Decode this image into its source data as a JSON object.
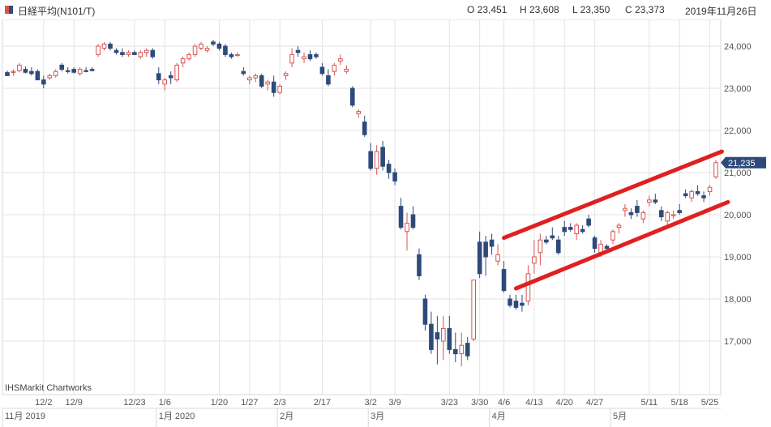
{
  "header": {
    "instrument": "日経平均(N101/T)",
    "open": "O 23,451",
    "high": "H 23,608",
    "low": "L 23,350",
    "close": "C 23,373",
    "date": "2019年11月26日"
  },
  "watermark": "IHSMarkit Chartworks",
  "colors": {
    "up": "#d9534f",
    "down": "#2e4a7a",
    "channel": "#e02020",
    "price_tag": "#2e4a7a"
  },
  "chart_data": {
    "type": "candlestick",
    "ylim": [
      16000,
      24600
    ],
    "y_ticks": [
      "24,000",
      "23,000",
      "22,000",
      "21,000",
      "20,000",
      "19,000",
      "18,000",
      "17,000"
    ],
    "y_tick_values": [
      24000,
      23000,
      22000,
      21000,
      20000,
      19000,
      18000,
      17000
    ],
    "last_price_label": "21,235",
    "last_price": 21235,
    "x_ticks": [
      "12/2",
      "12/9",
      "12/23",
      "1/6",
      "1/20",
      "1/27",
      "2/3",
      "2/17",
      "3/2",
      "3/9",
      "3/23",
      "3/30",
      "4/6",
      "4/13",
      "4/20",
      "4/27",
      "5/11",
      "5/18",
      "5/25"
    ],
    "x_tick_index": [
      6,
      11,
      21,
      26,
      35,
      40,
      45,
      52,
      60,
      64,
      73,
      78,
      82,
      87,
      92,
      97,
      106,
      111,
      116
    ],
    "month_labels": [
      "11月 2019",
      "1月 2020",
      "2月",
      "3月",
      "4月",
      "5月"
    ],
    "month_index": [
      0,
      25,
      45,
      60,
      80,
      100
    ],
    "candles": [
      [
        23373,
        23420,
        23300,
        23300
      ],
      [
        23380,
        23450,
        23300,
        23400
      ],
      [
        23420,
        23600,
        23380,
        23550
      ],
      [
        23450,
        23520,
        23350,
        23380
      ],
      [
        23400,
        23500,
        23300,
        23350
      ],
      [
        23400,
        23450,
        23200,
        23200
      ],
      [
        23200,
        23300,
        23000,
        23100
      ],
      [
        23250,
        23350,
        23200,
        23300
      ],
      [
        23300,
        23450,
        23250,
        23400
      ],
      [
        23550,
        23600,
        23400,
        23450
      ],
      [
        23420,
        23500,
        23350,
        23400
      ],
      [
        23450,
        23500,
        23350,
        23380
      ],
      [
        23350,
        23500,
        23300,
        23450
      ],
      [
        23420,
        23500,
        23380,
        23400
      ],
      [
        23450,
        23500,
        23400,
        23420
      ],
      [
        23800,
        24050,
        23750,
        24000
      ],
      [
        23950,
        24100,
        23900,
        24050
      ],
      [
        24050,
        24100,
        23900,
        23950
      ],
      [
        23900,
        23950,
        23800,
        23850
      ],
      [
        23850,
        23950,
        23750,
        23800
      ],
      [
        23800,
        23900,
        23750,
        23850
      ],
      [
        23850,
        23900,
        23800,
        23800
      ],
      [
        23750,
        23900,
        23700,
        23850
      ],
      [
        23850,
        23950,
        23750,
        23900
      ],
      [
        23900,
        23950,
        23700,
        23750
      ],
      [
        23350,
        23500,
        23100,
        23200
      ],
      [
        23100,
        23250,
        22950,
        23200
      ],
      [
        23300,
        23400,
        23100,
        23250
      ],
      [
        23200,
        23600,
        23150,
        23550
      ],
      [
        23600,
        23750,
        23500,
        23700
      ],
      [
        23700,
        23850,
        23650,
        23800
      ],
      [
        23800,
        24050,
        23750,
        24000
      ],
      [
        23950,
        24100,
        23900,
        24050
      ],
      [
        23900,
        24000,
        23850,
        23950
      ],
      [
        24100,
        24150,
        24000,
        24050
      ],
      [
        24050,
        24100,
        23900,
        23950
      ],
      [
        24000,
        24050,
        23750,
        23800
      ],
      [
        23800,
        23850,
        23700,
        23750
      ],
      [
        23800,
        23850,
        23750,
        23800
      ],
      [
        23400,
        23500,
        23300,
        23350
      ],
      [
        23200,
        23300,
        23100,
        23250
      ],
      [
        23250,
        23350,
        23150,
        23300
      ],
      [
        23300,
        23350,
        23000,
        23050
      ],
      [
        23100,
        23200,
        22950,
        23150
      ],
      [
        23150,
        23300,
        22800,
        22900
      ],
      [
        22900,
        23100,
        22850,
        23050
      ],
      [
        23300,
        23400,
        23200,
        23350
      ],
      [
        23600,
        23950,
        23500,
        23800
      ],
      [
        23900,
        24000,
        23750,
        23850
      ],
      [
        23700,
        23850,
        23600,
        23750
      ],
      [
        23800,
        23900,
        23650,
        23700
      ],
      [
        23800,
        23850,
        23700,
        23750
      ],
      [
        23500,
        23600,
        23300,
        23350
      ],
      [
        23300,
        23450,
        23050,
        23100
      ],
      [
        23400,
        23600,
        23300,
        23550
      ],
      [
        23650,
        23800,
        23550,
        23700
      ],
      [
        23400,
        23550,
        23350,
        23450
      ],
      [
        23000,
        23050,
        22550,
        22600
      ],
      [
        22400,
        22500,
        22300,
        22450
      ],
      [
        22200,
        22350,
        21850,
        21900
      ],
      [
        21500,
        21700,
        21050,
        21100
      ],
      [
        21100,
        21650,
        20950,
        21500
      ],
      [
        21600,
        21750,
        21050,
        21150
      ],
      [
        21200,
        21300,
        20850,
        21000
      ],
      [
        21000,
        21100,
        20700,
        20800
      ],
      [
        20200,
        20400,
        19650,
        19700
      ],
      [
        19600,
        20050,
        19150,
        19800
      ],
      [
        20000,
        20200,
        19650,
        19700
      ],
      [
        19050,
        19200,
        18450,
        18550
      ],
      [
        18000,
        18100,
        17250,
        17400
      ],
      [
        17400,
        17700,
        16700,
        16800
      ],
      [
        17200,
        17600,
        16450,
        17050
      ],
      [
        17000,
        17600,
        16550,
        17300
      ],
      [
        17300,
        17600,
        16700,
        16800
      ],
      [
        16800,
        17200,
        16500,
        16700
      ],
      [
        16700,
        17200,
        16400,
        16900
      ],
      [
        16950,
        17100,
        16550,
        16650
      ],
      [
        17050,
        18450,
        17000,
        18450
      ],
      [
        19350,
        19600,
        18500,
        18600
      ],
      [
        19350,
        19500,
        18550,
        19000
      ],
      [
        19400,
        19550,
        19050,
        19250
      ],
      [
        18900,
        19300,
        18800,
        19050
      ],
      [
        18700,
        18900,
        18150,
        18200
      ],
      [
        18000,
        18100,
        17800,
        17850
      ],
      [
        17950,
        18100,
        17750,
        17800
      ],
      [
        17900,
        18100,
        17700,
        17850
      ],
      [
        17950,
        18800,
        17850,
        18600
      ],
      [
        18850,
        19400,
        18600,
        19000
      ],
      [
        19100,
        19550,
        18800,
        19400
      ],
      [
        19400,
        19500,
        19300,
        19350
      ],
      [
        19500,
        19700,
        19400,
        19450
      ],
      [
        19400,
        19500,
        19050,
        19100
      ],
      [
        19700,
        19850,
        19500,
        19600
      ],
      [
        19700,
        19800,
        19600,
        19650
      ],
      [
        19550,
        19800,
        19400,
        19750
      ],
      [
        19650,
        19750,
        19550,
        19600
      ],
      [
        19900,
        20000,
        19700,
        19750
      ],
      [
        19450,
        19500,
        19100,
        19200
      ],
      [
        19100,
        19400,
        19000,
        19300
      ],
      [
        19250,
        19300,
        19150,
        19200
      ],
      [
        19400,
        19650,
        19300,
        19600
      ],
      [
        19700,
        19800,
        19550,
        19750
      ],
      [
        20100,
        20250,
        19950,
        20150
      ],
      [
        20050,
        20150,
        19900,
        20000
      ],
      [
        20200,
        20350,
        19950,
        20050
      ],
      [
        19900,
        20100,
        19800,
        20050
      ],
      [
        20300,
        20450,
        20200,
        20350
      ],
      [
        20350,
        20500,
        20250,
        20300
      ],
      [
        20100,
        20200,
        19850,
        19950
      ],
      [
        19850,
        20100,
        19750,
        20050
      ],
      [
        20000,
        20100,
        19900,
        20000
      ],
      [
        20100,
        20250,
        20000,
        20050
      ],
      [
        20500,
        20600,
        20400,
        20450
      ],
      [
        20400,
        20600,
        20300,
        20550
      ],
      [
        20550,
        20700,
        20450,
        20500
      ],
      [
        20450,
        20550,
        20300,
        20400
      ],
      [
        20550,
        20700,
        20450,
        20650
      ],
      [
        20900,
        21300,
        20850,
        21235
      ]
    ],
    "channel_lines": [
      {
        "from": [
          82,
          19450
        ],
        "to": [
          118,
          21500
        ]
      },
      {
        "from": [
          84,
          18250
        ],
        "to": [
          119,
          20300
        ]
      }
    ]
  }
}
